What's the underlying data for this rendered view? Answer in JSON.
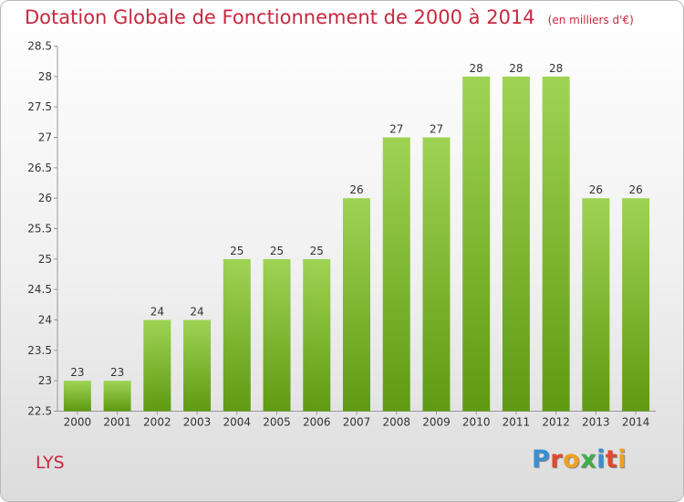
{
  "chart_data": {
    "type": "bar",
    "title": "Dotation Globale de Fonctionnement de 2000 à 2014",
    "subtitle": "(en milliers d'€)",
    "categories": [
      "2000",
      "2001",
      "2002",
      "2003",
      "2004",
      "2005",
      "2006",
      "2007",
      "2008",
      "2009",
      "2010",
      "2011",
      "2012",
      "2013",
      "2014"
    ],
    "values": [
      23,
      23,
      24,
      24,
      25,
      25,
      25,
      26,
      27,
      27,
      28,
      28,
      28,
      26,
      26
    ],
    "value_labels": [
      "23",
      "23",
      "24",
      "24",
      "25",
      "25",
      "25",
      "26",
      "27",
      "27",
      "28",
      "28",
      "28",
      "26",
      "26"
    ],
    "ylim": [
      22.5,
      28.5
    ],
    "yticks": [
      22.5,
      23,
      23.5,
      24,
      24.5,
      25,
      25.5,
      26,
      26.5,
      27,
      27.5,
      28,
      28.5
    ],
    "ytick_labels": [
      "22.5",
      "23",
      "23.5",
      "24",
      "24.5",
      "25",
      "25.5",
      "26",
      "26.5",
      "27",
      "27.5",
      "28",
      "28.5"
    ],
    "xlabel": "",
    "ylabel": "",
    "grid": false,
    "bar_color_top": "#9fd354",
    "bar_color_bottom": "#5f9a12"
  },
  "commune": "LYS",
  "logo": {
    "letters": [
      "P",
      "r",
      "o",
      "x",
      "i",
      "t",
      "i"
    ],
    "colors": [
      "#3a8fd3",
      "#e0482f",
      "#f0a020",
      "#3fae49",
      "#3a8fd3",
      "#e0482f",
      "#f0a020"
    ]
  },
  "colors": {
    "title": "#c8283f"
  }
}
